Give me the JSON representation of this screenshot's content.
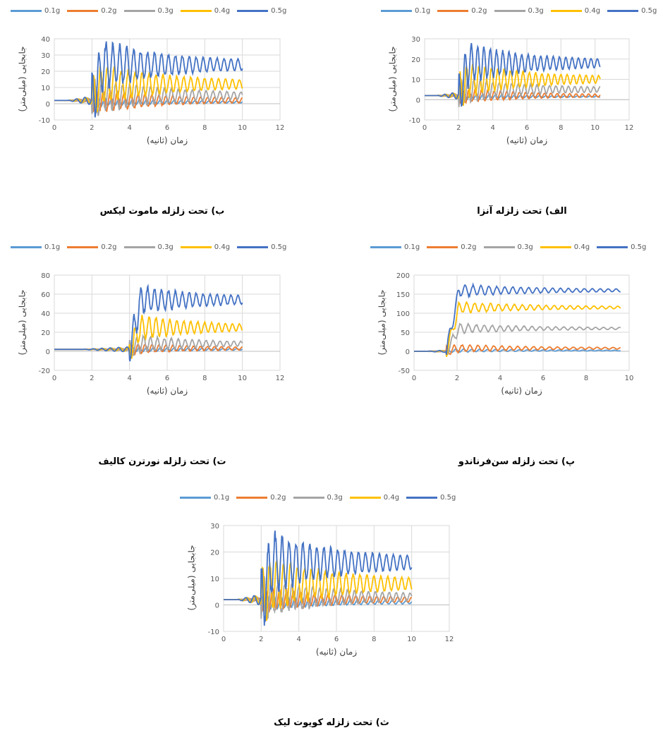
{
  "legend_labels": [
    "0.1g",
    "0.2g",
    "0.3g",
    "0.4g",
    "0.5g"
  ],
  "series_colors": [
    "#5B9BD5",
    "#ED7D31",
    "#A5A5A5",
    "#FFC000",
    "#4472C4"
  ],
  "chart_data": [
    {
      "type": "line",
      "caption": "الف) تحت زلزله آنزا",
      "ylabel": "جابجایی (میلی‌متر)",
      "xlabel": "زمان (ثانیه)",
      "xlim": [
        0,
        12
      ],
      "ylim": [
        -10,
        30
      ],
      "xticks": [
        0,
        2,
        4,
        6,
        8,
        10,
        12
      ],
      "yticks": [
        -10,
        0,
        10,
        20,
        30
      ],
      "t_end": 10.3,
      "t_onset": 2.0,
      "series": [
        {
          "name": "0.1g",
          "pre": 2,
          "final": 1.5,
          "amp": 1.5
        },
        {
          "name": "0.2g",
          "pre": 2,
          "final": 2,
          "amp": 4
        },
        {
          "name": "0.3g",
          "pre": 2,
          "final": 5,
          "amp": 7
        },
        {
          "name": "0.4g",
          "pre": 2,
          "final": 10,
          "amp": 10
        },
        {
          "name": "0.5g",
          "pre": 2,
          "final": 18,
          "amp": 12
        }
      ]
    },
    {
      "type": "line",
      "caption": "ب) تحت زلزله ماموت لیکس",
      "ylabel": "جابجایی (میلی‌متر)",
      "xlabel": "زمان (ثانیه)",
      "xlim": [
        0,
        12
      ],
      "ylim": [
        -10,
        40
      ],
      "xticks": [
        0,
        2,
        4,
        6,
        8,
        10,
        12
      ],
      "yticks": [
        -10,
        0,
        10,
        20,
        30,
        40
      ],
      "t_end": 10,
      "t_onset": 2.0,
      "series": [
        {
          "name": "0.1g",
          "pre": 2,
          "final": 1,
          "amp": 3
        },
        {
          "name": "0.2g",
          "pre": 2,
          "final": 2,
          "amp": 8
        },
        {
          "name": "0.3g",
          "pre": 2,
          "final": 5,
          "amp": 12
        },
        {
          "name": "0.4g",
          "pre": 2,
          "final": 12,
          "amp": 15
        },
        {
          "name": "0.5g",
          "pre": 2,
          "final": 24,
          "amp": 18
        }
      ]
    },
    {
      "type": "line",
      "caption": "پ) تحت زلزله سن‌فرناندو",
      "ylabel": "جابجایی (میلی‌متر)",
      "xlabel": "زمان (ثانیه)",
      "xlim": [
        0,
        10
      ],
      "ylim": [
        -50,
        200
      ],
      "xticks": [
        0,
        2,
        4,
        6,
        8,
        10
      ],
      "yticks": [
        -50,
        0,
        50,
        100,
        150,
        200
      ],
      "t_end": 9.6,
      "t_onset": 1.5,
      "series": [
        {
          "name": "0.1g",
          "pre": 0,
          "final": 2,
          "amp": 5
        },
        {
          "name": "0.2g",
          "pre": 0,
          "final": 8,
          "amp": 12
        },
        {
          "name": "0.3g",
          "pre": 0,
          "final": 60,
          "amp": 15
        },
        {
          "name": "0.4g",
          "pre": 0,
          "final": 115,
          "amp": 18
        },
        {
          "name": "0.5g",
          "pre": 0,
          "final": 160,
          "amp": 20
        }
      ]
    },
    {
      "type": "line",
      "caption": "ت) تحت زلزله نورترن کالیف",
      "ylabel": "جابجایی (میلی‌متر)",
      "xlabel": "زمان (ثانیه)",
      "xlim": [
        0,
        12
      ],
      "ylim": [
        -20,
        80
      ],
      "xticks": [
        0,
        2,
        4,
        6,
        8,
        10,
        12
      ],
      "yticks": [
        -20,
        0,
        20,
        40,
        60,
        80
      ],
      "t_end": 10,
      "t_onset": 4.0,
      "series": [
        {
          "name": "0.1g",
          "pre": 2,
          "final": 2,
          "amp": 3
        },
        {
          "name": "0.2g",
          "pre": 2,
          "final": 3,
          "amp": 6
        },
        {
          "name": "0.3g",
          "pre": 2,
          "final": 8,
          "amp": 10
        },
        {
          "name": "0.4g",
          "pre": 2,
          "final": 25,
          "amp": 15
        },
        {
          "name": "0.5g",
          "pre": 2,
          "final": 54,
          "amp": 18
        }
      ]
    },
    {
      "type": "line",
      "caption": "ث) تحت زلزله کویوت لیک",
      "ylabel": "جابجایی (میلی‌متر)",
      "xlabel": "زمان (ثانیه)",
      "xlim": [
        0,
        12
      ],
      "ylim": [
        -10,
        30
      ],
      "xticks": [
        0,
        2,
        4,
        6,
        8,
        10,
        12
      ],
      "yticks": [
        -10,
        0,
        10,
        20,
        30
      ],
      "t_end": 10,
      "t_onset": 2.0,
      "series": [
        {
          "name": "0.1g",
          "pre": 2,
          "final": 1,
          "amp": 3
        },
        {
          "name": "0.2g",
          "pre": 2,
          "final": 2,
          "amp": 5
        },
        {
          "name": "0.3g",
          "pre": 2,
          "final": 3,
          "amp": 8
        },
        {
          "name": "0.4g",
          "pre": 2,
          "final": 8,
          "amp": 12
        },
        {
          "name": "0.5g",
          "pre": 2,
          "final": 16,
          "amp": 14
        }
      ]
    }
  ]
}
